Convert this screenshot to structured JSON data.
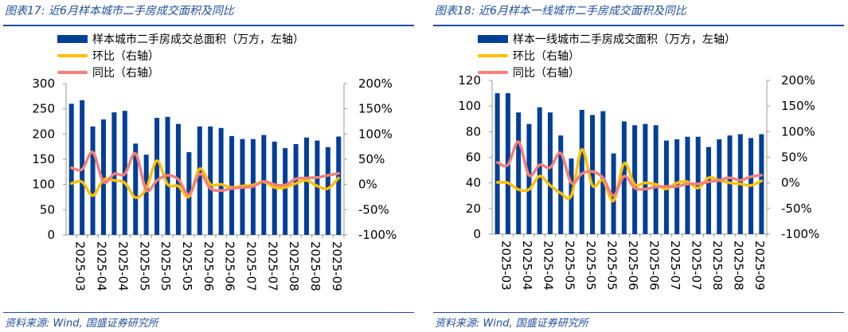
{
  "colors": {
    "bar": "#003f98",
    "mom": "#ffc000",
    "yoy": "#f4807a",
    "title": "#1f4e9c"
  },
  "chart_data": [
    {
      "type": "bar",
      "title": "图表17: 近6月样本城市二手房成交面积及同比",
      "source": "资料来源: Wind, 国盛证券研究所",
      "legend": [
        "样本城市二手房成交总面积（万方，左轴）",
        "环比（右轴）",
        "同比（右轴）"
      ],
      "ylim": [
        0,
        300
      ],
      "yticks": [
        "0",
        "50",
        "100",
        "150",
        "200",
        "250",
        "300"
      ],
      "y2lim": [
        -100,
        200
      ],
      "y2ticks": [
        "-100%",
        "-50%",
        "0%",
        "50%",
        "100%",
        "150%",
        "200%"
      ],
      "xticks": [
        "2025-03",
        "2025-04",
        "2025-04",
        "2025-05",
        "2025-05",
        "2025-05",
        "2025-06",
        "2025-06",
        "2025-07",
        "2025-07",
        "2025-08",
        "2025-08",
        "2025-09"
      ],
      "series": [
        {
          "name": "样本城市二手房成交总面积（万方，左轴）",
          "values": [
            260,
            267,
            215,
            229,
            243,
            246,
            181,
            159,
            232,
            234,
            220,
            164,
            215,
            215,
            212,
            196,
            190,
            190,
            198,
            185,
            172,
            180,
            193,
            187,
            174,
            195
          ]
        },
        {
          "name": "环比（右轴）",
          "values": [
            2,
            5,
            -22,
            9,
            8,
            3,
            -26,
            -8,
            47,
            0,
            -3,
            -24,
            31,
            0,
            0,
            -6,
            -3,
            -1,
            5,
            -6,
            -6,
            2,
            8,
            -3,
            -8,
            13
          ]
        },
        {
          "name": "同比（右轴）",
          "values": [
            33,
            30,
            64,
            5,
            21,
            21,
            61,
            -11,
            8,
            18,
            10,
            -20,
            21,
            -8,
            -12,
            -8,
            -6,
            -4,
            6,
            0,
            -1,
            11,
            13,
            14,
            18,
            22
          ]
        }
      ]
    },
    {
      "type": "bar",
      "title": "图表18: 近6月样本一线城市二手房成交面积及同比",
      "source": "资料来源: Wind, 国盛证券研究所",
      "legend": [
        "样本一线城市二手房成交面积（万方，左轴）",
        "环比（右轴）",
        "同比（右轴）"
      ],
      "ylim": [
        0,
        120
      ],
      "yticks": [
        "0",
        "20",
        "40",
        "60",
        "80",
        "100",
        "120"
      ],
      "y2lim": [
        -100,
        200
      ],
      "y2ticks": [
        "-100%",
        "-50%",
        "0%",
        "50%",
        "100%",
        "150%",
        "200%"
      ],
      "xticks": [
        "2025-03",
        "2025-04",
        "2025-04",
        "2025-05",
        "2025-05",
        "2025-05",
        "2025-06",
        "2025-06",
        "2025-07",
        "2025-07",
        "2025-08",
        "2025-08",
        "2025-09"
      ],
      "series": [
        {
          "name": "样本一线城市二手房成交面积（万方，左轴）",
          "values": [
            110,
            110,
            95,
            86,
            99,
            95,
            77,
            59,
            97,
            93,
            96,
            63,
            88,
            85,
            86,
            85,
            73,
            74,
            76,
            76,
            68,
            74,
            77,
            78,
            75,
            78
          ]
        },
        {
          "name": "环比（右轴）",
          "values": [
            1,
            0,
            -13,
            -13,
            13,
            -5,
            -20,
            -25,
            65,
            -5,
            5,
            -35,
            38,
            -3,
            0,
            -3,
            -12,
            0,
            2,
            -10,
            10,
            5,
            0,
            -2,
            -5,
            4
          ]
        },
        {
          "name": "同比（右轴）",
          "values": [
            40,
            35,
            80,
            15,
            35,
            30,
            58,
            0,
            18,
            22,
            10,
            -25,
            13,
            -10,
            -12,
            -8,
            -7,
            -7,
            -2,
            -2,
            2,
            5,
            10,
            5,
            12,
            15
          ]
        }
      ]
    }
  ]
}
